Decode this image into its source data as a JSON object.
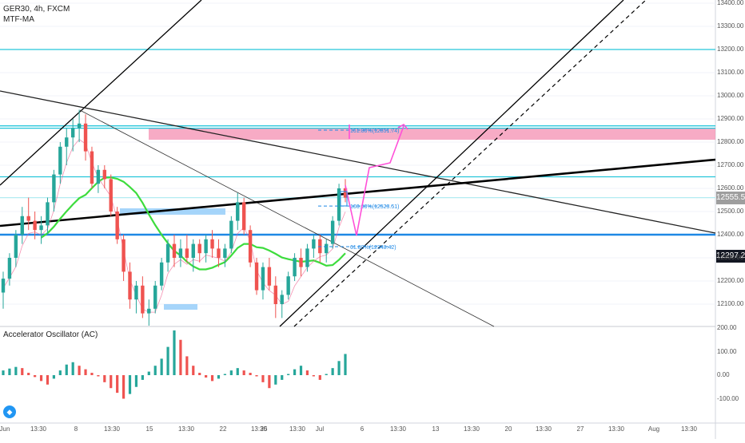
{
  "header": {
    "symbol_line": "GER30, 4h, FXCM",
    "indicator_name": "MTF-MA"
  },
  "oscillator": {
    "title": "Accelerator Oscillator (AC)",
    "ticks": [
      "200.00",
      "100.00",
      "0.00",
      "-100.00"
    ]
  },
  "price_axis": {
    "ticks": [
      "13400.00",
      "13300.00",
      "13200.00",
      "13100.00",
      "13000.00",
      "12900.00",
      "12800.00",
      "12700.00",
      "12600.00",
      "12500.00",
      "12400.00",
      "12300.00",
      "12200.00",
      "12100.00"
    ],
    "current_price_label": "12555.56",
    "current_price_color": "#9e9e9e",
    "marker_label": "12297.20",
    "marker_color": "#131722"
  },
  "time_axis": {
    "labels": [
      "Jun",
      "13:30",
      "8",
      "13:30",
      "15",
      "13:30",
      "22",
      "13:30",
      "25",
      "13:30",
      "Jul",
      "6",
      "13:30",
      "13",
      "13:30",
      "20",
      "13:30",
      "27",
      "13:30",
      "Aug",
      "13:30"
    ]
  },
  "fib_labels": {
    "upper": "161.80%(12851.74)",
    "mid": "100.00%(12523.51)",
    "lower": "61.80%(12348.42)"
  },
  "colors": {
    "support_line": "#1e88e5",
    "horizontal_levels": "#26c6da",
    "resistance_zone": "#f48fb1",
    "projection": "#ff4fd8",
    "ma_line": "#3ddc3d",
    "candle_up": "#26a69a",
    "candle_down": "#ef5350",
    "trend_lines": "#000000"
  },
  "chart_data": {
    "type": "candlestick",
    "symbol": "GER30",
    "timeframe": "4h",
    "source": "FXCM",
    "ylim": [
      12000,
      13400
    ],
    "candles": [
      [
        12150,
        12240,
        12080,
        12210
      ],
      [
        12210,
        12320,
        12180,
        12300
      ],
      [
        12300,
        12420,
        12260,
        12400
      ],
      [
        12400,
        12520,
        12360,
        12480
      ],
      [
        12480,
        12560,
        12420,
        12460
      ],
      [
        12460,
        12500,
        12380,
        12420
      ],
      [
        12420,
        12480,
        12360,
        12440
      ],
      [
        12440,
        12560,
        12400,
        12540
      ],
      [
        12540,
        12680,
        12500,
        12660
      ],
      [
        12660,
        12800,
        12620,
        12780
      ],
      [
        12780,
        12860,
        12700,
        12820
      ],
      [
        12820,
        12900,
        12760,
        12860
      ],
      [
        12860,
        12940,
        12800,
        12880
      ],
      [
        12880,
        12920,
        12720,
        12760
      ],
      [
        12760,
        12780,
        12600,
        12620
      ],
      [
        12620,
        12700,
        12580,
        12680
      ],
      [
        12680,
        12700,
        12600,
        12640
      ],
      [
        12640,
        12660,
        12480,
        12500
      ],
      [
        12500,
        12520,
        12360,
        12380
      ],
      [
        12380,
        12400,
        12200,
        12240
      ],
      [
        12240,
        12280,
        12080,
        12120
      ],
      [
        12120,
        12200,
        12060,
        12180
      ],
      [
        12180,
        12220,
        12040,
        12060
      ],
      [
        12060,
        12120,
        12000,
        12080
      ],
      [
        12080,
        12200,
        12060,
        12180
      ],
      [
        12180,
        12300,
        12160,
        12280
      ],
      [
        12280,
        12380,
        12240,
        12360
      ],
      [
        12360,
        12400,
        12260,
        12300
      ],
      [
        12300,
        12380,
        12260,
        12340
      ],
      [
        12340,
        12400,
        12280,
        12300
      ],
      [
        12300,
        12380,
        12240,
        12360
      ],
      [
        12360,
        12380,
        12280,
        12320
      ],
      [
        12320,
        12400,
        12280,
        12380
      ],
      [
        12380,
        12420,
        12300,
        12340
      ],
      [
        12340,
        12380,
        12260,
        12300
      ],
      [
        12300,
        12360,
        12260,
        12340
      ],
      [
        12340,
        12480,
        12320,
        12460
      ],
      [
        12460,
        12580,
        12420,
        12540
      ],
      [
        12540,
        12560,
        12400,
        12420
      ],
      [
        12420,
        12440,
        12260,
        12280
      ],
      [
        12280,
        12300,
        12140,
        12160
      ],
      [
        12160,
        12280,
        12120,
        12260
      ],
      [
        12260,
        12300,
        12160,
        12180
      ],
      [
        12180,
        12220,
        12040,
        12100
      ],
      [
        12100,
        12160,
        12040,
        12140
      ],
      [
        12140,
        12240,
        12120,
        12220
      ],
      [
        12220,
        12320,
        12200,
        12300
      ],
      [
        12300,
        12340,
        12220,
        12260
      ],
      [
        12260,
        12360,
        12240,
        12340
      ],
      [
        12340,
        12400,
        12300,
        12380
      ],
      [
        12380,
        12400,
        12280,
        12320
      ],
      [
        12320,
        12380,
        12280,
        12360
      ],
      [
        12360,
        12480,
        12340,
        12460
      ],
      [
        12460,
        12620,
        12440,
        12600
      ],
      [
        12600,
        12640,
        12540,
        12560
      ]
    ],
    "levels": [
      13200,
      12870,
      12860,
      12650,
      12560,
      12400
    ],
    "zone": {
      "from": 12810,
      "to": 12860
    },
    "fibonacci": [
      {
        "ratio": "161.80%",
        "value": 12851.74
      },
      {
        "ratio": "100.00%",
        "value": 12523.51
      },
      {
        "ratio": "61.80%",
        "value": 12348.42
      }
    ],
    "current_price": 12555.56,
    "marker_price": 12297.2,
    "oscillator": {
      "name": "Accelerator Oscillator (AC)",
      "ylim": [
        -200,
        200
      ],
      "values": [
        20,
        28,
        35,
        30,
        10,
        -8,
        -25,
        -40,
        -15,
        20,
        45,
        55,
        40,
        25,
        10,
        -5,
        -30,
        -55,
        -75,
        -100,
        -80,
        -50,
        -20,
        15,
        40,
        70,
        120,
        190,
        150,
        80,
        40,
        10,
        -10,
        -25,
        -15,
        5,
        20,
        30,
        20,
        10,
        -5,
        -30,
        -55,
        -40,
        -20,
        5,
        25,
        40,
        20,
        -5,
        -20,
        5,
        30,
        60,
        90
      ]
    }
  }
}
